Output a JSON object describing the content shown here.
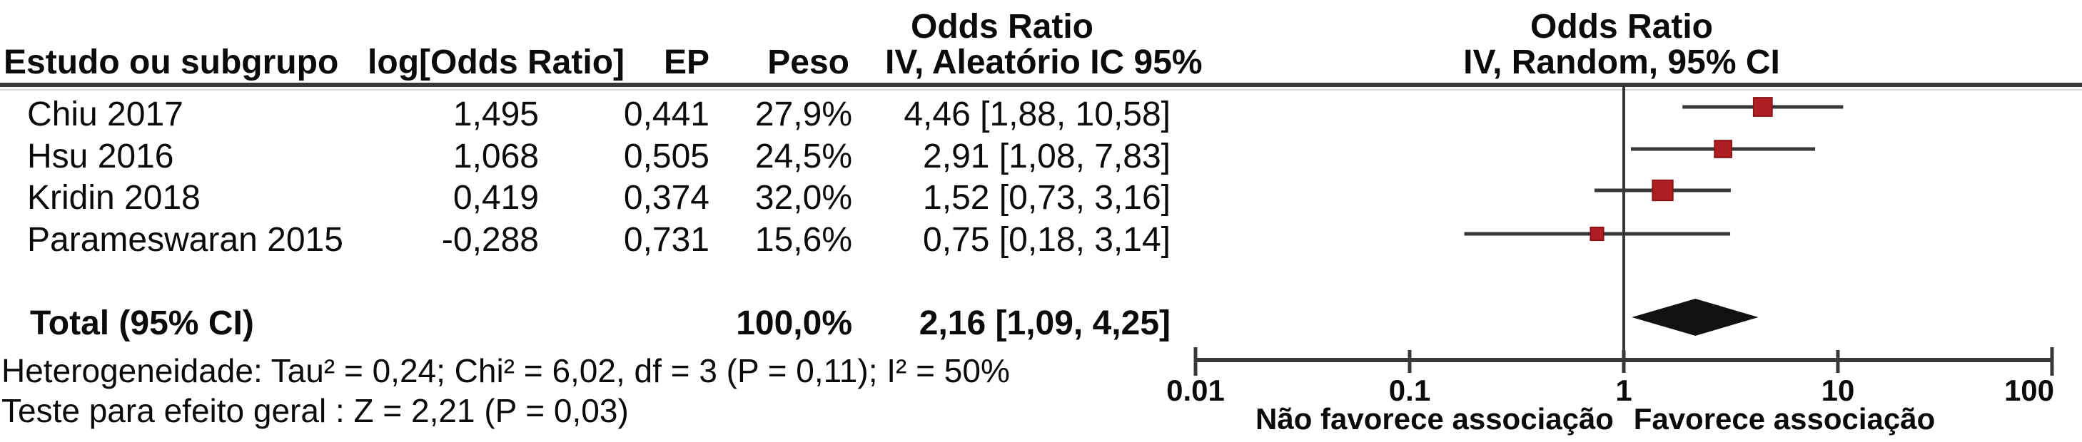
{
  "colors": {
    "marker_red": "#af1e23",
    "marker_red_edge": "#8c1318",
    "line_dark": "#383838",
    "diamond_black": "#111111",
    "text": "#0b0b0b"
  },
  "table": {
    "or_column_title": "Odds Ratio",
    "headers": {
      "study": "Estudo ou subgrupo",
      "log_or": "log[Odds Ratio]",
      "se": "EP",
      "weight": "Peso",
      "or_ci": "IV, Aleatório IC 95%"
    },
    "studies": [
      {
        "name": "Chiu 2017",
        "log_or": "1,495",
        "se": "0,441",
        "weight": "27,9%",
        "or_ci": "4,46 [1,88, 10,58]"
      },
      {
        "name": "Hsu 2016",
        "log_or": "1,068",
        "se": "0,505",
        "weight": "24,5%",
        "or_ci": "2,91 [1,08, 7,83]"
      },
      {
        "name": "Kridin 2018",
        "log_or": "0,419",
        "se": "0,374",
        "weight": "32,0%",
        "or_ci": "1,52 [0,73, 3,16]"
      },
      {
        "name": "Parameswaran 2015",
        "log_or": "-0,288",
        "se": "0,731",
        "weight": "15,6%",
        "or_ci": "0,75 [0,18, 3,14]"
      }
    ],
    "total": {
      "label": "Total (95% CI)",
      "weight": "100,0%",
      "or_ci": "2,16 [1,09, 4,25]"
    },
    "heterogeneity": "Heterogeneidade: Tau² = 0,24; Chi² = 6,02, df = 3 (P = 0,11); I² = 50%",
    "overall_effect": "Teste para efeito geral : Z = 2,21 (P = 0,03)"
  },
  "chart_data": {
    "type": "forest",
    "title": "Odds Ratio",
    "subtitle": "IV, Random, 95% CI",
    "x_scale": "log10",
    "x_range": [
      0.01,
      100
    ],
    "x_ticks": [
      {
        "value": 0.01,
        "label": "0.01"
      },
      {
        "value": 0.1,
        "label": "0.1"
      },
      {
        "value": 1,
        "label": "1"
      },
      {
        "value": 10,
        "label": "10"
      },
      {
        "value": 100,
        "label": "100"
      }
    ],
    "null_value": 1,
    "studies": [
      {
        "name": "Chiu 2017",
        "or": 4.46,
        "ci_low": 1.88,
        "ci_high": 10.58,
        "weight_pct": 27.9
      },
      {
        "name": "Hsu 2016",
        "or": 2.91,
        "ci_low": 1.08,
        "ci_high": 7.83,
        "weight_pct": 24.5
      },
      {
        "name": "Kridin 2018",
        "or": 1.52,
        "ci_low": 0.73,
        "ci_high": 3.16,
        "weight_pct": 32.0
      },
      {
        "name": "Parameswaran 2015",
        "or": 0.75,
        "ci_low": 0.18,
        "ci_high": 3.14,
        "weight_pct": 15.6
      }
    ],
    "total": {
      "or": 2.16,
      "ci_low": 1.09,
      "ci_high": 4.25
    },
    "direction_labels": {
      "left": "Não favorece associação",
      "right": "Favorece associação"
    }
  }
}
